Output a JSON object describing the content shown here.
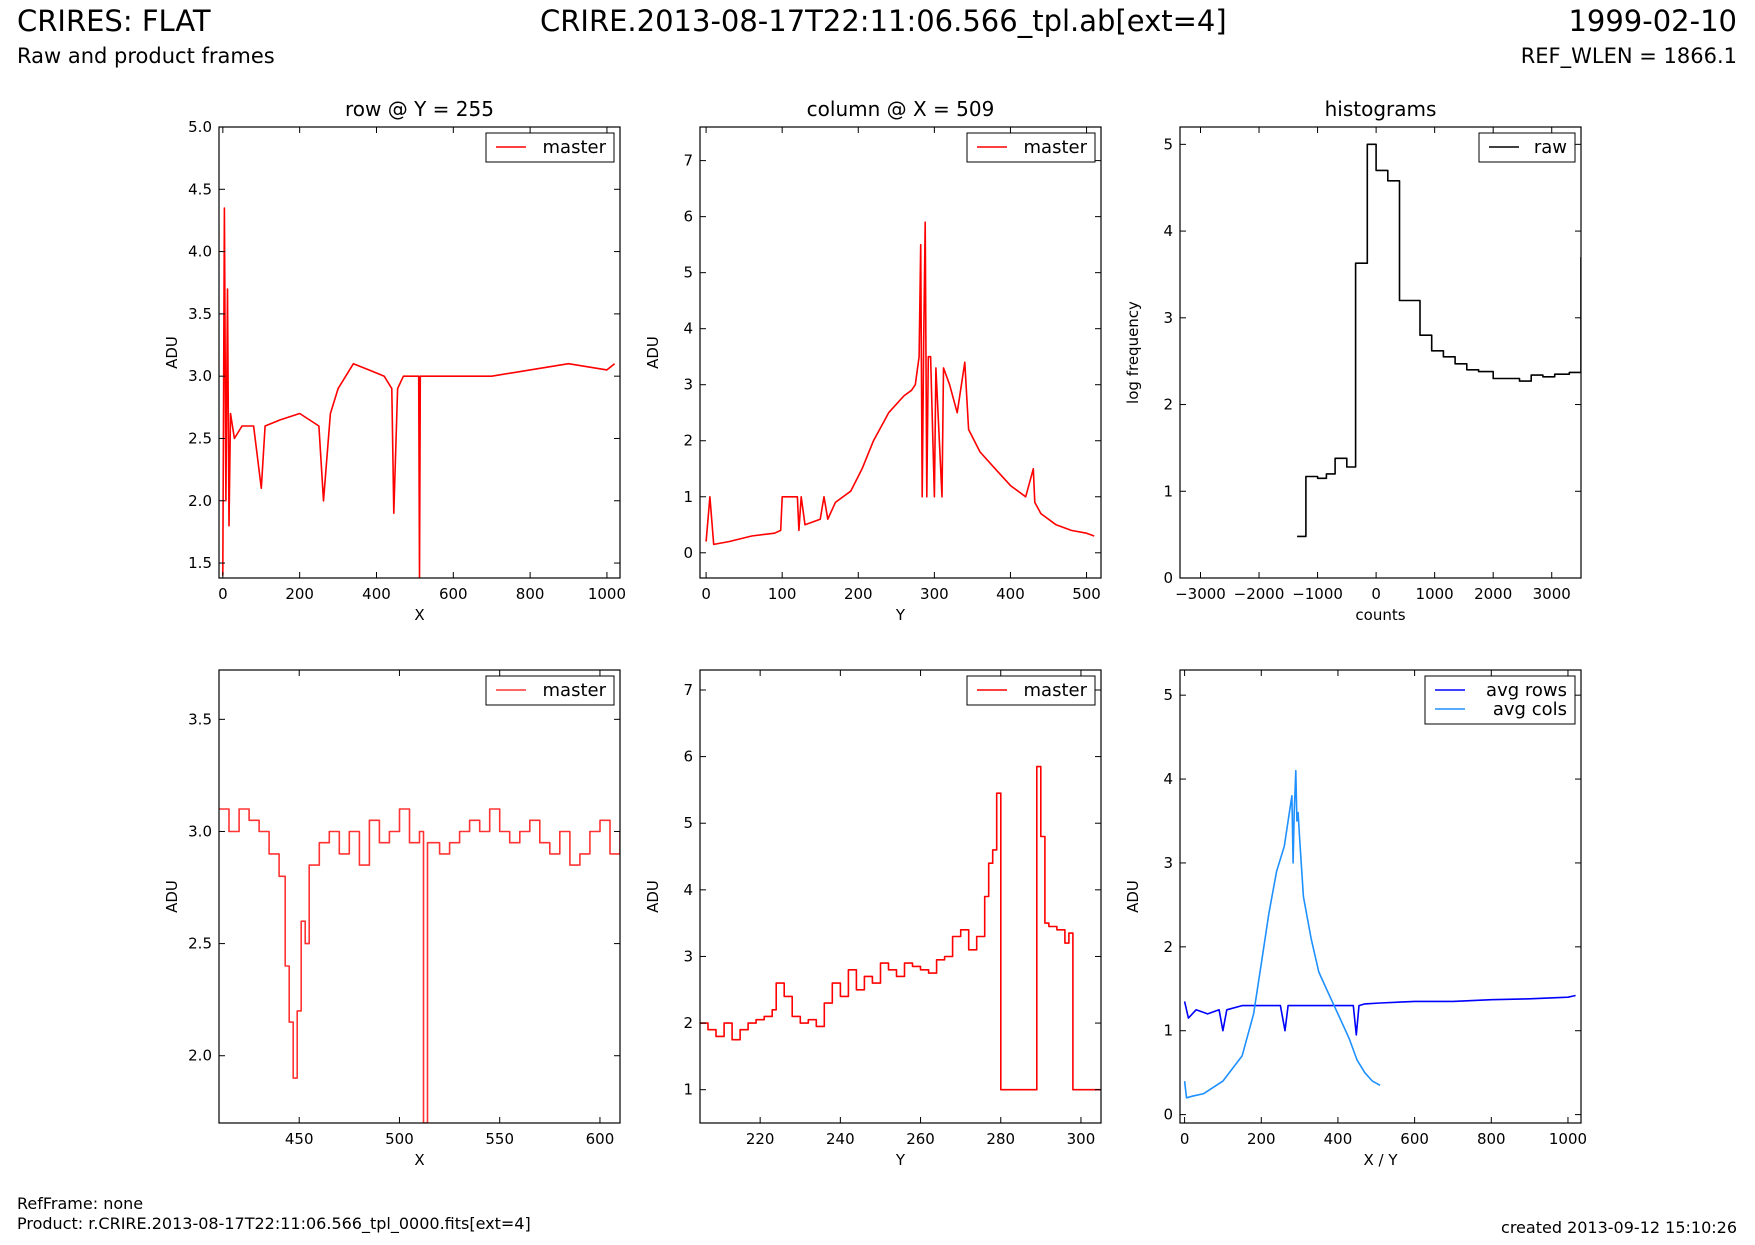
{
  "header": {
    "title_left": "CRIRES: FLAT",
    "title_center": "CRIRE.2013-08-17T22:11:06.566_tpl.ab[ext=4]",
    "title_right": "1999-02-10",
    "subtitle_left": "Raw and product frames",
    "subtitle_right": "REF_WLEN = 1866.1"
  },
  "footer": {
    "ref_frame": "RefFrame: none",
    "product": "Product: r.CRIRE.2013-08-17T22:11:06.566_tpl_0000.fits[ext=4]",
    "created": "created 2013-09-12 15:10:26"
  },
  "colors": {
    "red": "#ff0000",
    "red_light": "#ff3333",
    "black": "#000000",
    "blue": "#0000ff",
    "light_blue": "#1e90ff"
  },
  "chart_data": [
    {
      "type": "line",
      "title": "row @ Y = 255",
      "xlabel": "X",
      "ylabel": "ADU",
      "xlim": [
        -10,
        1034
      ],
      "ylim": [
        1.38,
        5.0
      ],
      "xticks": [
        0,
        200,
        400,
        600,
        800,
        1000
      ],
      "yticks": [
        1.5,
        2.0,
        2.5,
        3.0,
        3.5,
        4.0,
        4.5,
        5.0
      ],
      "yticklabels": [
        "1.5",
        "2.0",
        "2.5",
        "3.0",
        "3.5",
        "4.0",
        "4.5",
        "5.0"
      ],
      "legend": "top-right",
      "series": [
        {
          "name": "master",
          "color": "#ff0000",
          "x": [
            0,
            4,
            8,
            12,
            16,
            20,
            30,
            50,
            80,
            100,
            110,
            150,
            200,
            250,
            262,
            280,
            300,
            340,
            380,
            420,
            440,
            445,
            450,
            455,
            470,
            510,
            512,
            514,
            540,
            600,
            700,
            800,
            900,
            1000,
            1020
          ],
          "y": [
            1.4,
            4.35,
            2.0,
            3.7,
            1.8,
            2.7,
            2.5,
            2.6,
            2.6,
            2.1,
            2.6,
            2.65,
            2.7,
            2.6,
            2.0,
            2.7,
            2.9,
            3.1,
            3.05,
            3.0,
            2.9,
            1.9,
            2.4,
            2.9,
            3.0,
            3.0,
            1.38,
            3.0,
            3.0,
            3.0,
            3.0,
            3.05,
            3.1,
            3.05,
            3.1
          ]
        }
      ]
    },
    {
      "type": "line",
      "title": "column @ X = 509",
      "xlabel": "Y",
      "ylabel": "ADU",
      "xlim": [
        -8,
        519
      ],
      "ylim": [
        -0.45,
        7.6
      ],
      "xticks": [
        0,
        100,
        200,
        300,
        400,
        500
      ],
      "yticks": [
        0,
        1,
        2,
        3,
        4,
        5,
        6,
        7
      ],
      "yticklabels": [
        "0",
        "1",
        "2",
        "3",
        "4",
        "5",
        "6",
        "7"
      ],
      "legend": "top-right",
      "series": [
        {
          "name": "master",
          "color": "#ff0000",
          "x": [
            0,
            5,
            10,
            30,
            60,
            90,
            98,
            100,
            105,
            120,
            122,
            125,
            130,
            150,
            155,
            160,
            170,
            190,
            205,
            220,
            240,
            260,
            270,
            275,
            280,
            282,
            284,
            286,
            288,
            290,
            292,
            295,
            300,
            302,
            310,
            312,
            320,
            330,
            340,
            345,
            360,
            380,
            400,
            420,
            430,
            432,
            440,
            460,
            480,
            500,
            510
          ],
          "y": [
            0.2,
            1.0,
            0.15,
            0.2,
            0.3,
            0.35,
            0.4,
            1.0,
            1.0,
            1.0,
            0.4,
            1.0,
            0.5,
            0.6,
            1.0,
            0.6,
            0.9,
            1.1,
            1.5,
            2.0,
            2.5,
            2.8,
            2.9,
            3.0,
            3.5,
            5.5,
            1.0,
            3.8,
            5.9,
            1.0,
            3.5,
            3.5,
            1.0,
            3.3,
            1.0,
            3.3,
            3.0,
            2.5,
            3.4,
            2.2,
            1.8,
            1.5,
            1.2,
            1.0,
            1.5,
            0.9,
            0.7,
            0.5,
            0.4,
            0.35,
            0.3
          ]
        }
      ]
    },
    {
      "type": "line",
      "title": "histograms",
      "xlabel": "counts",
      "ylabel": "log frequency",
      "xlim": [
        -3350,
        3500
      ],
      "ylim": [
        0,
        5.2
      ],
      "xticks": [
        -3000,
        -2000,
        -1000,
        0,
        1000,
        2000,
        3000
      ],
      "xticklabels": [
        "−3000",
        "−2000",
        "−1000",
        "0",
        "1000",
        "2000",
        "3000"
      ],
      "yticks": [
        0,
        1,
        2,
        3,
        4,
        5
      ],
      "yticklabels": [
        "0",
        "1",
        "2",
        "3",
        "4",
        "5"
      ],
      "legend": "top-right",
      "series": [
        {
          "name": "raw",
          "color": "#000000",
          "step": true,
          "x": [
            -1350,
            -1200,
            -1000,
            -850,
            -700,
            -500,
            -350,
            -150,
            0,
            200,
            400,
            550,
            750,
            950,
            1150,
            1350,
            1550,
            1750,
            2000,
            2250,
            2450,
            2650,
            2850,
            3050,
            3300,
            3500
          ],
          "y": [
            0.48,
            1.17,
            1.15,
            1.2,
            1.38,
            1.28,
            3.63,
            5.0,
            4.7,
            4.58,
            3.2,
            3.2,
            2.8,
            2.62,
            2.55,
            2.47,
            2.4,
            2.38,
            2.3,
            2.3,
            2.27,
            2.34,
            2.32,
            2.35,
            2.37,
            3.7
          ]
        }
      ]
    },
    {
      "type": "line",
      "title": "",
      "xlabel": "X",
      "ylabel": "ADU",
      "xlim": [
        410,
        610
      ],
      "ylim": [
        1.7,
        3.72
      ],
      "xticks": [
        450,
        500,
        550,
        600
      ],
      "yticks": [
        2.0,
        2.5,
        3.0,
        3.5
      ],
      "yticklabels": [
        "2.0",
        "2.5",
        "3.0",
        "3.5"
      ],
      "legend": "top-right",
      "series": [
        {
          "name": "master",
          "color": "#ff3333",
          "step": true,
          "x": [
            410,
            415,
            420,
            425,
            430,
            435,
            440,
            443,
            445,
            447,
            449,
            451,
            453,
            455,
            460,
            465,
            470,
            475,
            480,
            485,
            490,
            495,
            500,
            505,
            510,
            512,
            514,
            520,
            525,
            530,
            535,
            540,
            545,
            550,
            555,
            560,
            565,
            570,
            575,
            580,
            585,
            590,
            595,
            600,
            605,
            610
          ],
          "y": [
            3.1,
            3.0,
            3.1,
            3.05,
            3.0,
            2.9,
            2.8,
            2.4,
            2.15,
            1.9,
            2.2,
            2.6,
            2.5,
            2.85,
            2.95,
            3.0,
            2.9,
            3.0,
            2.85,
            3.05,
            2.95,
            3.0,
            3.1,
            2.95,
            3.0,
            1.7,
            2.95,
            2.9,
            2.95,
            3.0,
            3.05,
            3.0,
            3.1,
            3.0,
            2.95,
            3.0,
            3.05,
            2.95,
            2.9,
            3.0,
            2.85,
            2.9,
            3.0,
            3.05,
            2.9,
            3.0
          ]
        }
      ]
    },
    {
      "type": "line",
      "title": "",
      "xlabel": "Y",
      "ylabel": "ADU",
      "xlim": [
        205,
        305
      ],
      "ylim": [
        0.5,
        7.3
      ],
      "xticks": [
        220,
        240,
        260,
        280,
        300
      ],
      "yticks": [
        1,
        2,
        3,
        4,
        5,
        6,
        7
      ],
      "yticklabels": [
        "1",
        "2",
        "3",
        "4",
        "5",
        "6",
        "7"
      ],
      "legend": "top-right",
      "series": [
        {
          "name": "master",
          "color": "#ff0000",
          "step": true,
          "x": [
            205,
            207,
            209,
            211,
            213,
            215,
            217,
            219,
            221,
            223,
            224,
            226,
            228,
            230,
            232,
            234,
            236,
            238,
            240,
            242,
            244,
            246,
            248,
            250,
            252,
            254,
            256,
            258,
            260,
            262,
            264,
            266,
            268,
            270,
            272,
            274,
            276,
            277,
            278,
            279,
            280,
            281,
            283,
            285,
            287,
            289,
            290,
            291,
            292,
            294,
            296,
            297,
            298,
            300,
            302,
            305
          ],
          "y": [
            2.0,
            1.9,
            1.8,
            2.0,
            1.75,
            1.9,
            2.0,
            2.05,
            2.1,
            2.2,
            2.6,
            2.4,
            2.1,
            2.0,
            2.05,
            1.95,
            2.3,
            2.6,
            2.4,
            2.8,
            2.5,
            2.7,
            2.6,
            2.9,
            2.8,
            2.7,
            2.9,
            2.85,
            2.8,
            2.75,
            2.95,
            3.0,
            3.3,
            3.4,
            3.1,
            3.3,
            3.9,
            4.4,
            4.6,
            5.45,
            1.0,
            1.0,
            1.0,
            1.0,
            1.0,
            5.85,
            4.8,
            3.5,
            3.45,
            3.4,
            3.2,
            3.35,
            1.0,
            1.0,
            1.0,
            1.0
          ]
        }
      ]
    },
    {
      "type": "line",
      "title": "",
      "xlabel": "X / Y",
      "ylabel": "ADU",
      "xlim": [
        -12,
        1034
      ],
      "ylim": [
        -0.1,
        5.3
      ],
      "xticks": [
        0,
        200,
        400,
        600,
        800,
        1000
      ],
      "yticks": [
        0,
        1,
        2,
        3,
        4,
        5
      ],
      "yticklabels": [
        "0",
        "1",
        "2",
        "3",
        "4",
        "5"
      ],
      "legend": "top-right",
      "series": [
        {
          "name": "avg rows",
          "color": "#0000ff",
          "x": [
            0,
            10,
            30,
            60,
            90,
            100,
            110,
            150,
            200,
            250,
            262,
            270,
            300,
            350,
            400,
            440,
            448,
            455,
            470,
            510,
            600,
            700,
            800,
            900,
            1000,
            1020
          ],
          "y": [
            1.35,
            1.15,
            1.25,
            1.2,
            1.25,
            1.0,
            1.25,
            1.3,
            1.3,
            1.3,
            1.0,
            1.3,
            1.3,
            1.3,
            1.3,
            1.3,
            0.95,
            1.3,
            1.32,
            1.33,
            1.35,
            1.35,
            1.37,
            1.38,
            1.4,
            1.42
          ]
        }
      ]
    },
    {
      "ref": "avg-cols",
      "series_name": "avg cols",
      "color": "#1e90ff",
      "x": [
        0,
        5,
        20,
        50,
        100,
        150,
        180,
        200,
        220,
        240,
        260,
        270,
        280,
        283,
        286,
        290,
        293,
        296,
        300,
        310,
        330,
        350,
        370,
        390,
        410,
        430,
        450,
        470,
        490,
        510
      ],
      "y": [
        0.4,
        0.2,
        0.22,
        0.25,
        0.4,
        0.7,
        1.2,
        1.8,
        2.4,
        2.9,
        3.2,
        3.5,
        3.8,
        3.0,
        3.6,
        4.1,
        3.5,
        3.6,
        3.3,
        2.6,
        2.1,
        1.7,
        1.5,
        1.3,
        1.1,
        0.9,
        0.65,
        0.5,
        0.4,
        0.35
      ]
    }
  ]
}
